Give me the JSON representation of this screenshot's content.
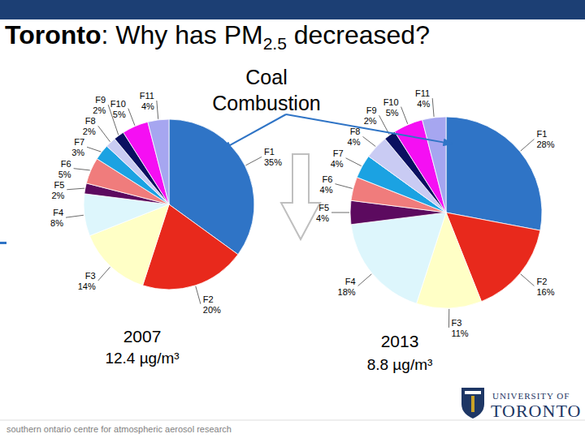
{
  "slide": {
    "title": [
      "Toronto",
      ": Why has PM",
      "2.5",
      " decreased?"
    ],
    "annotation": [
      "Coal",
      "Combustion"
    ],
    "footer": "southern ontario centre for atmospheric aerosol research",
    "logo": [
      "UNIVERSITY OF",
      "TORONTO"
    ]
  },
  "chart_data": [
    {
      "type": "pie",
      "title": "2007",
      "subtitle": "12.4 µg/m³",
      "categories": [
        "F1",
        "F2",
        "F3",
        "F4",
        "F5",
        "F6",
        "F7",
        "F8",
        "F9",
        "F10",
        "F11"
      ],
      "values": [
        35,
        20,
        14,
        8,
        2,
        5,
        3,
        2,
        2,
        5,
        4
      ],
      "value_labels": [
        "35%",
        "20%",
        "14%",
        "8%",
        "2%",
        "5%",
        "3%",
        "2%",
        "2%",
        "5%",
        "4%"
      ],
      "colors": [
        "#2f74c6",
        "#e8291c",
        "#ffffc6",
        "#ddf6fc",
        "#5c0a5f",
        "#f07c7c",
        "#1ba2e2",
        "#c9cbf3",
        "#0b1060",
        "#f50ff3",
        "#a6a6f0"
      ],
      "data_labels": true
    },
    {
      "type": "pie",
      "title": "2013",
      "subtitle": "8.8 µg/m³",
      "categories": [
        "F1",
        "F2",
        "F3",
        "F4",
        "F5",
        "F6",
        "F7",
        "F8",
        "F9",
        "F10",
        "F11"
      ],
      "values": [
        28,
        16,
        11,
        18,
        4,
        4,
        4,
        4,
        2,
        5,
        4
      ],
      "value_labels": [
        "28%",
        "16%",
        "11%",
        "18%",
        "4%",
        "4%",
        "4%",
        "4%",
        "2%",
        "5%",
        "4%"
      ],
      "colors": [
        "#2f74c6",
        "#e8291c",
        "#ffffc6",
        "#ddf6fc",
        "#5c0a5f",
        "#f07c7c",
        "#1ba2e2",
        "#c9cbf3",
        "#0b1060",
        "#f50ff3",
        "#a6a6f0"
      ],
      "data_labels": true
    }
  ]
}
